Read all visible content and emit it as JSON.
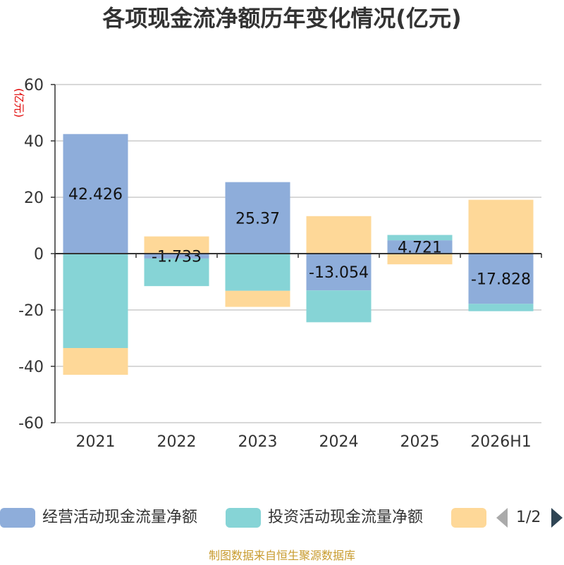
{
  "chart_data": {
    "type": "bar",
    "stacked": true,
    "title": "各项现金流净额历年变化情况(亿元)",
    "ylabel": "(亿元)",
    "xlabel": "",
    "categories": [
      "2021",
      "2022",
      "2023",
      "2024",
      "2025",
      "2026H1"
    ],
    "ylim": [
      -60,
      60
    ],
    "yticks": [
      60,
      40,
      20,
      0,
      -20,
      -40,
      -60
    ],
    "grid": true,
    "legend_position": "bottom",
    "series": [
      {
        "name": "经营活动现金流量净额",
        "color": "#8eadda",
        "values": [
          42.426,
          -1.733,
          25.37,
          -13.054,
          4.721,
          -17.828
        ],
        "labels": [
          "42.426",
          "-1.733",
          "25.37",
          "-13.054",
          "4.721",
          "-17.828"
        ]
      },
      {
        "name": "投资活动现金流量净额",
        "color": "#86d4d6",
        "values": [
          -33.5,
          -9.8,
          -13.2,
          -11.3,
          1.9,
          -2.6
        ]
      },
      {
        "color": "#fed898",
        "values": [
          -9.5,
          6.1,
          -5.7,
          13.3,
          -3.8,
          19.1
        ]
      }
    ]
  },
  "legend": {
    "pager_text": "1/2"
  },
  "footer": {
    "source": "制图数据来自恒生聚源数据库"
  }
}
